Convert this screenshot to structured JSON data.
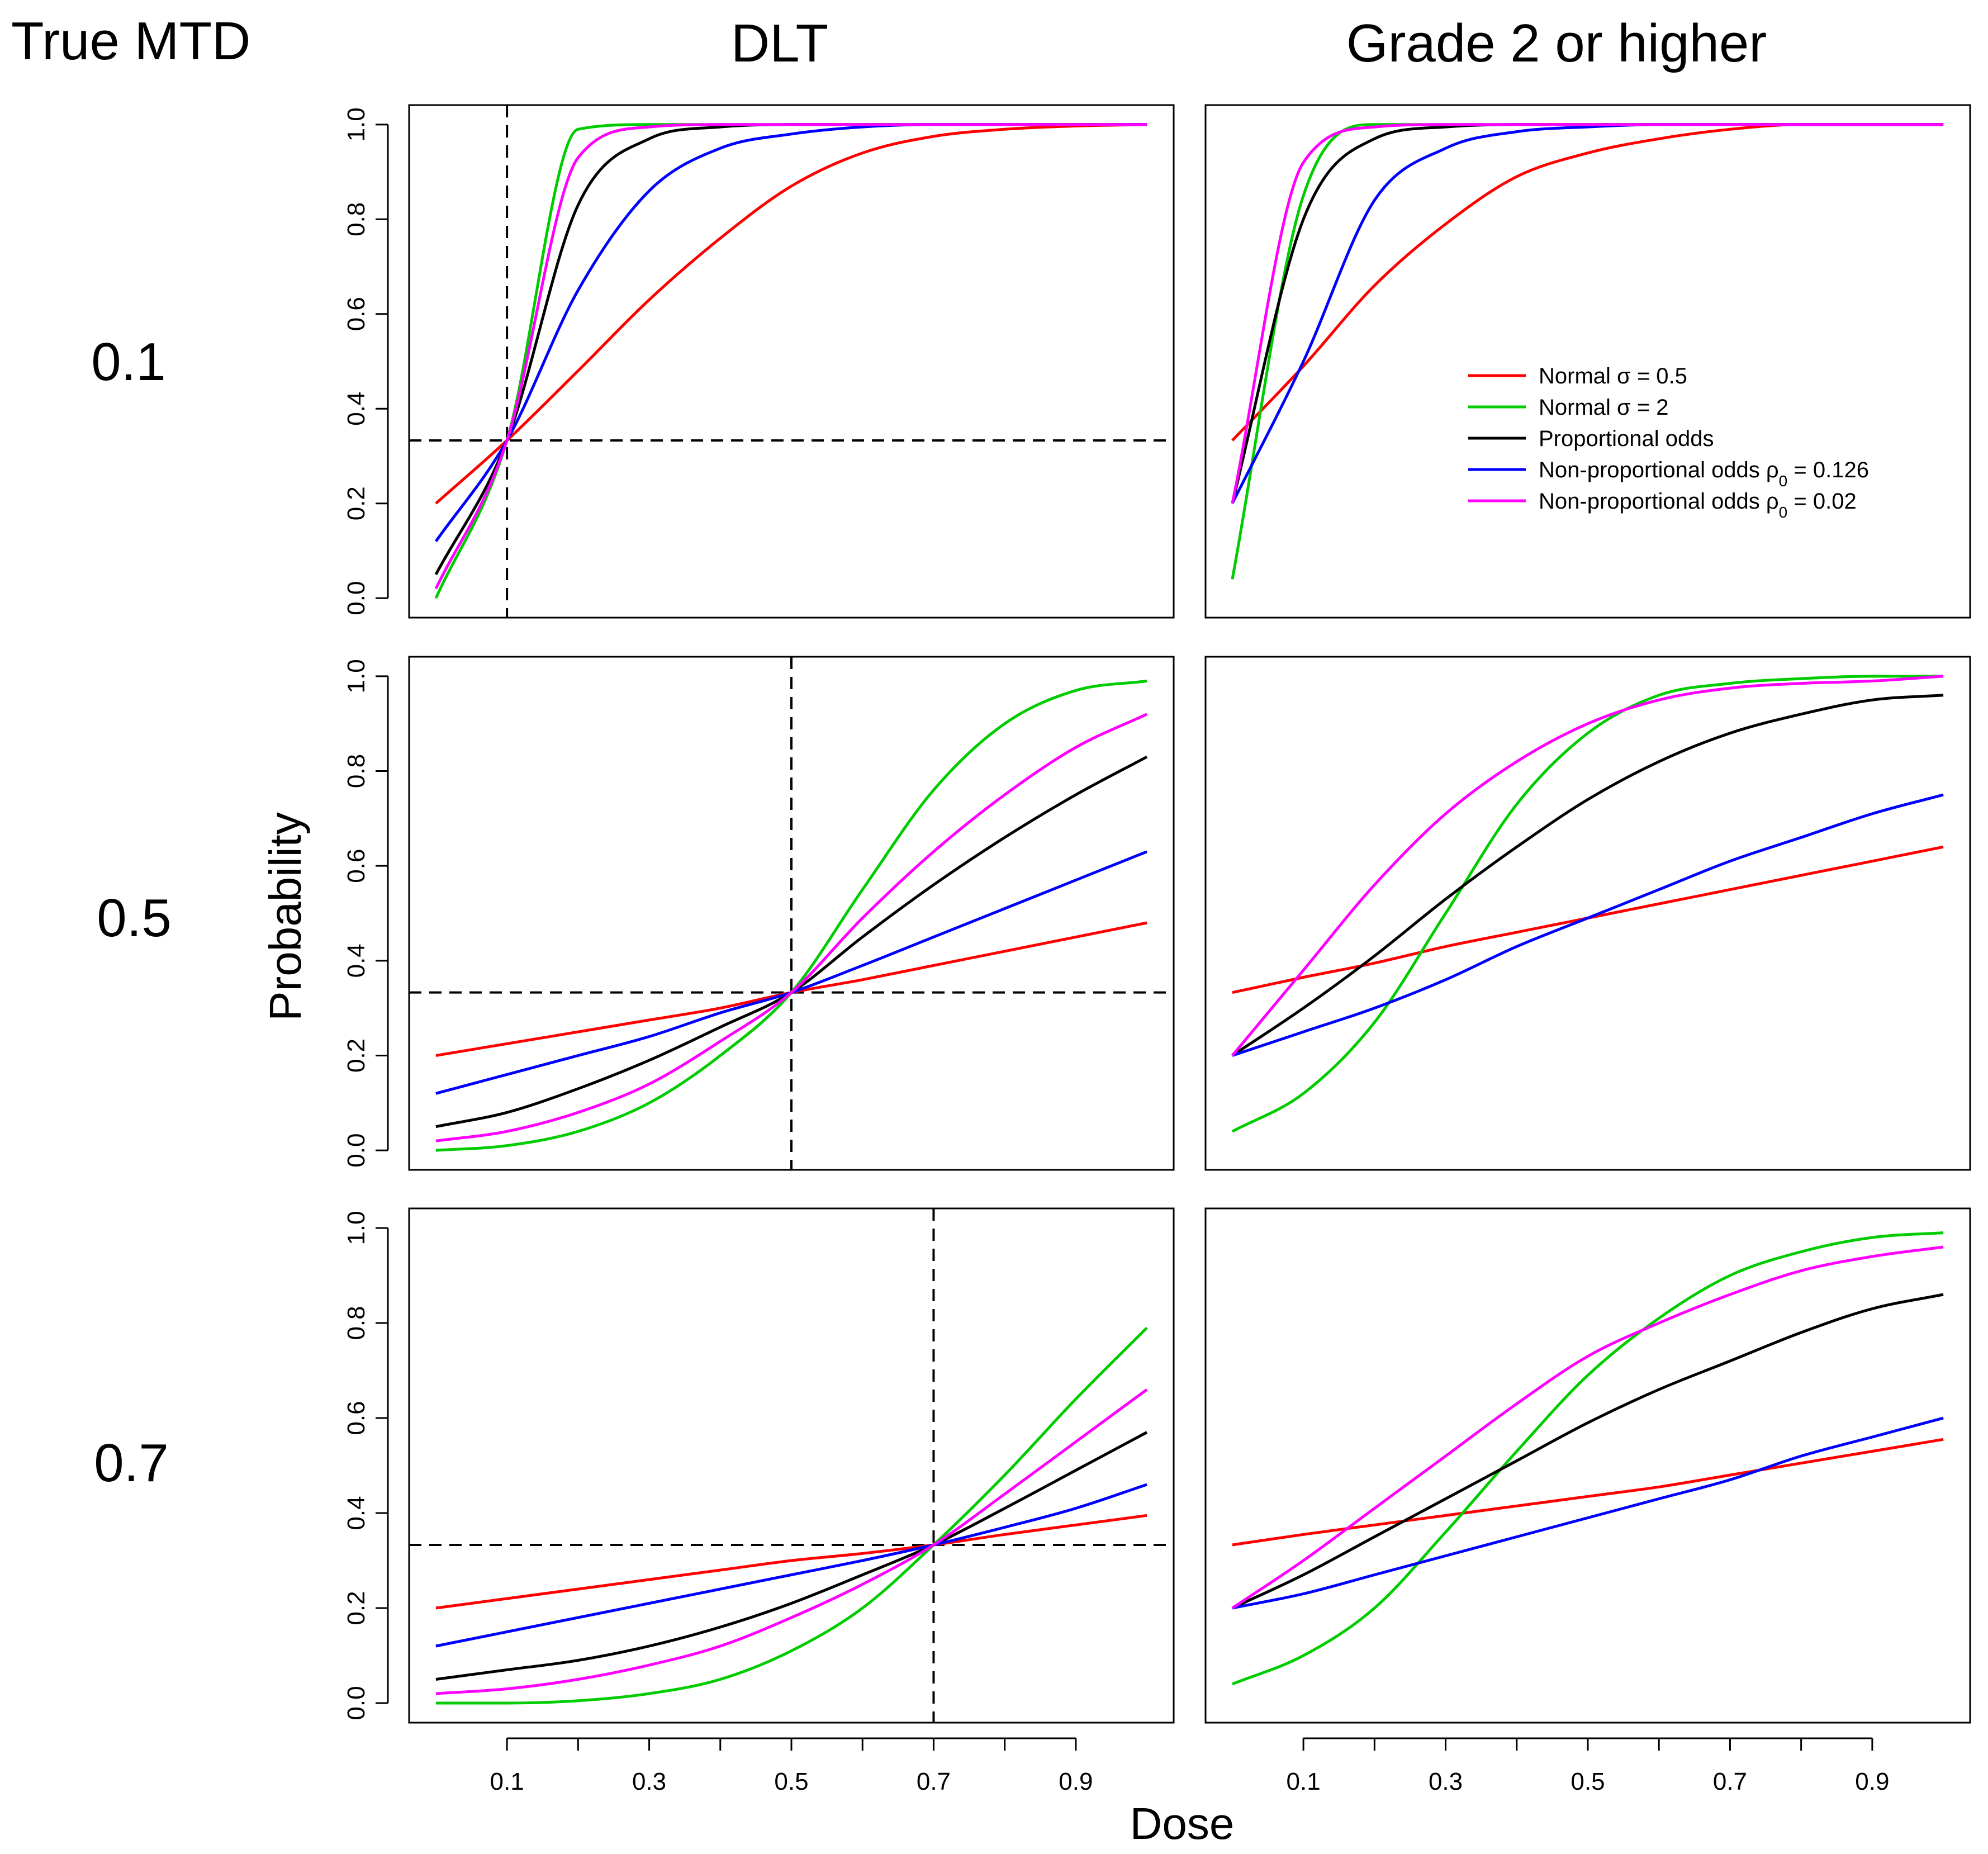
{
  "figure": {
    "row_header": "True MTD",
    "col_headers": [
      "DLT",
      "Grade 2 or higher"
    ],
    "row_labels": [
      "0.1",
      "0.5",
      "0.7"
    ],
    "xlabel": "Dose",
    "ylabel": "Probability",
    "x_ticks": [
      "0.1",
      "0.3",
      "0.5",
      "0.7",
      "0.9"
    ],
    "y_ticks": [
      "0.0",
      "0.2",
      "0.4",
      "0.6",
      "0.8",
      "1.0"
    ],
    "target_probability": 0.333,
    "legend": [
      {
        "id": "n05",
        "pre": "Normal σ = 0.5",
        "sub": "",
        "post": "",
        "color": "#ff0000"
      },
      {
        "id": "n2",
        "pre": "Normal σ = 2",
        "sub": "",
        "post": "",
        "color": "#00cc00"
      },
      {
        "id": "po",
        "pre": "Proportional odds",
        "sub": "",
        "post": "",
        "color": "#000000"
      },
      {
        "id": "npo126",
        "pre": "Non-proportional odds ρ",
        "sub": "0",
        "post": " = 0.126",
        "color": "#0000ff"
      },
      {
        "id": "npo02",
        "pre": "Non-proportional odds ρ",
        "sub": "0",
        "post": " = 0.02",
        "color": "#ff00ff"
      }
    ]
  },
  "chart_data": {
    "type": "line",
    "xlabel": "Dose",
    "ylabel": "Probability",
    "xlim": [
      0,
      1
    ],
    "ylim": [
      0,
      1
    ],
    "x": [
      0,
      0.1,
      0.2,
      0.3,
      0.4,
      0.5,
      0.6,
      0.7,
      0.8,
      0.9,
      1.0
    ],
    "panels": [
      {
        "true_mtd": 0.1,
        "outcome": "DLT",
        "vline": 0.1,
        "series": [
          {
            "id": "n05",
            "values": [
              0.2,
              0.333,
              0.48,
              0.63,
              0.76,
              0.87,
              0.94,
              0.975,
              0.99,
              0.997,
              1.0
            ]
          },
          {
            "id": "n2",
            "values": [
              0.0,
              0.333,
              0.99,
              1.0,
              1.0,
              1.0,
              1.0,
              1.0,
              1.0,
              1.0,
              1.0
            ]
          },
          {
            "id": "po",
            "values": [
              0.05,
              0.333,
              0.83,
              0.97,
              0.995,
              1.0,
              1.0,
              1.0,
              1.0,
              1.0,
              1.0
            ]
          },
          {
            "id": "npo126",
            "values": [
              0.12,
              0.333,
              0.65,
              0.86,
              0.95,
              0.98,
              0.995,
              1.0,
              1.0,
              1.0,
              1.0
            ]
          },
          {
            "id": "npo02",
            "values": [
              0.02,
              0.333,
              0.93,
              0.995,
              1.0,
              1.0,
              1.0,
              1.0,
              1.0,
              1.0,
              1.0
            ]
          }
        ]
      },
      {
        "true_mtd": 0.1,
        "outcome": "Grade 2 or higher",
        "vline": null,
        "series": [
          {
            "id": "n05",
            "values": [
              0.333,
              0.49,
              0.66,
              0.79,
              0.89,
              0.94,
              0.97,
              0.99,
              1.0,
              1.0,
              1.0
            ]
          },
          {
            "id": "n2",
            "values": [
              0.04,
              0.85,
              1.0,
              1.0,
              1.0,
              1.0,
              1.0,
              1.0,
              1.0,
              1.0,
              1.0
            ]
          },
          {
            "id": "po",
            "values": [
              0.2,
              0.8,
              0.97,
              0.995,
              1.0,
              1.0,
              1.0,
              1.0,
              1.0,
              1.0,
              1.0
            ]
          },
          {
            "id": "npo126",
            "values": [
              0.2,
              0.5,
              0.84,
              0.95,
              0.985,
              0.995,
              1.0,
              1.0,
              1.0,
              1.0,
              1.0
            ]
          },
          {
            "id": "npo02",
            "values": [
              0.2,
              0.92,
              0.995,
              1.0,
              1.0,
              1.0,
              1.0,
              1.0,
              1.0,
              1.0,
              1.0
            ]
          }
        ]
      },
      {
        "true_mtd": 0.5,
        "outcome": "DLT",
        "vline": 0.5,
        "series": [
          {
            "id": "n05",
            "values": [
              0.2,
              0.225,
              0.25,
              0.275,
              0.3,
              0.333,
              0.36,
              0.39,
              0.42,
              0.45,
              0.48
            ]
          },
          {
            "id": "n2",
            "values": [
              0.0,
              0.01,
              0.04,
              0.1,
              0.2,
              0.333,
              0.55,
              0.76,
              0.9,
              0.97,
              0.99
            ]
          },
          {
            "id": "po",
            "values": [
              0.05,
              0.08,
              0.13,
              0.19,
              0.26,
              0.333,
              0.45,
              0.56,
              0.66,
              0.75,
              0.83
            ]
          },
          {
            "id": "npo126",
            "values": [
              0.12,
              0.16,
              0.2,
              0.24,
              0.29,
              0.333,
              0.39,
              0.45,
              0.51,
              0.57,
              0.63
            ]
          },
          {
            "id": "npo02",
            "values": [
              0.02,
              0.04,
              0.08,
              0.14,
              0.23,
              0.333,
              0.49,
              0.63,
              0.75,
              0.85,
              0.92
            ]
          }
        ]
      },
      {
        "true_mtd": 0.5,
        "outcome": "Grade 2 or higher",
        "vline": null,
        "series": [
          {
            "id": "n05",
            "values": [
              0.333,
              0.365,
              0.395,
              0.43,
              0.46,
              0.49,
              0.52,
              0.55,
              0.58,
              0.61,
              0.64
            ]
          },
          {
            "id": "n2",
            "values": [
              0.04,
              0.12,
              0.27,
              0.5,
              0.73,
              0.88,
              0.96,
              0.985,
              0.995,
              1.0,
              1.0
            ]
          },
          {
            "id": "po",
            "values": [
              0.2,
              0.3,
              0.41,
              0.53,
              0.64,
              0.74,
              0.82,
              0.88,
              0.92,
              0.95,
              0.96
            ]
          },
          {
            "id": "npo126",
            "values": [
              0.2,
              0.25,
              0.3,
              0.36,
              0.43,
              0.49,
              0.55,
              0.61,
              0.66,
              0.71,
              0.75
            ]
          },
          {
            "id": "npo02",
            "values": [
              0.2,
              0.38,
              0.56,
              0.71,
              0.82,
              0.9,
              0.95,
              0.975,
              0.985,
              0.99,
              1.0
            ]
          }
        ]
      },
      {
        "true_mtd": 0.7,
        "outcome": "DLT",
        "vline": 0.7,
        "series": [
          {
            "id": "n05",
            "values": [
              0.2,
              0.22,
              0.24,
              0.26,
              0.28,
              0.3,
              0.315,
              0.333,
              0.355,
              0.375,
              0.395
            ]
          },
          {
            "id": "n2",
            "values": [
              0.0,
              0.0,
              0.005,
              0.02,
              0.05,
              0.11,
              0.2,
              0.333,
              0.48,
              0.64,
              0.79
            ]
          },
          {
            "id": "po",
            "values": [
              0.05,
              0.07,
              0.09,
              0.12,
              0.16,
              0.21,
              0.27,
              0.333,
              0.41,
              0.49,
              0.57
            ]
          },
          {
            "id": "npo126",
            "values": [
              0.12,
              0.15,
              0.18,
              0.21,
              0.24,
              0.27,
              0.3,
              0.333,
              0.37,
              0.41,
              0.46
            ]
          },
          {
            "id": "npo02",
            "values": [
              0.02,
              0.03,
              0.05,
              0.08,
              0.12,
              0.18,
              0.25,
              0.333,
              0.44,
              0.55,
              0.66
            ]
          }
        ]
      },
      {
        "true_mtd": 0.7,
        "outcome": "Grade 2 or higher",
        "vline": null,
        "series": [
          {
            "id": "n05",
            "values": [
              0.333,
              0.355,
              0.375,
              0.395,
              0.415,
              0.435,
              0.455,
              0.48,
              0.505,
              0.53,
              0.555
            ]
          },
          {
            "id": "n2",
            "values": [
              0.04,
              0.1,
              0.2,
              0.36,
              0.53,
              0.69,
              0.81,
              0.9,
              0.95,
              0.98,
              0.99
            ]
          },
          {
            "id": "po",
            "values": [
              0.2,
              0.27,
              0.35,
              0.43,
              0.51,
              0.59,
              0.66,
              0.72,
              0.78,
              0.83,
              0.86
            ]
          },
          {
            "id": "npo126",
            "values": [
              0.2,
              0.23,
              0.27,
              0.31,
              0.35,
              0.39,
              0.43,
              0.47,
              0.52,
              0.56,
              0.6
            ]
          },
          {
            "id": "npo02",
            "values": [
              0.2,
              0.3,
              0.41,
              0.52,
              0.63,
              0.73,
              0.8,
              0.86,
              0.91,
              0.94,
              0.96
            ]
          }
        ]
      }
    ]
  }
}
